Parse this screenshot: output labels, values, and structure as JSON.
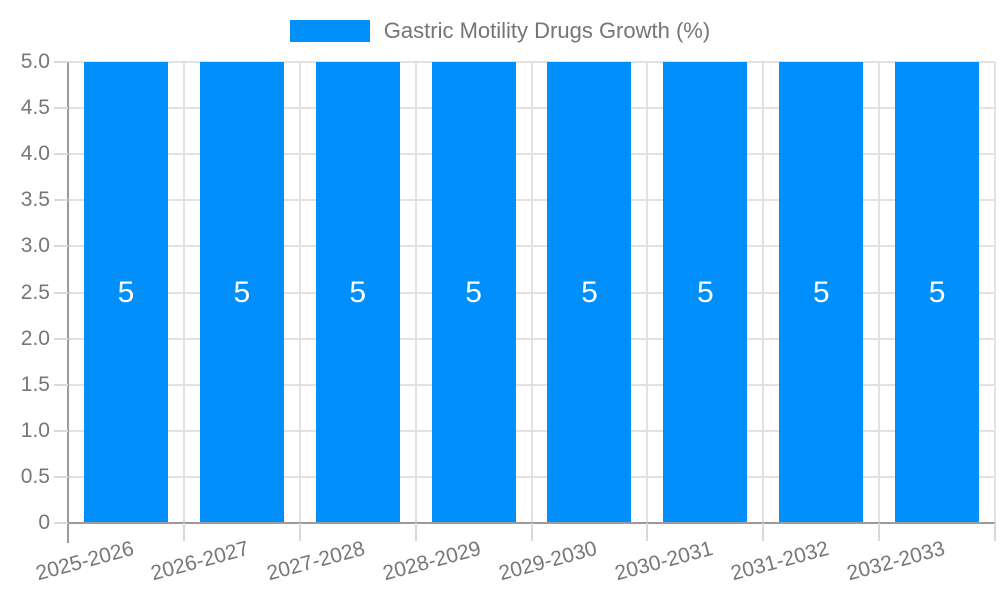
{
  "legend": {
    "label": "Gastric Motility Drugs Growth (%)"
  },
  "chart_data": {
    "type": "bar",
    "title": "",
    "xlabel": "",
    "ylabel": "",
    "categories": [
      "2025-2026",
      "2026-2027",
      "2027-2028",
      "2028-2029",
      "2029-2030",
      "2030-2031",
      "2031-2032",
      "2032-2033"
    ],
    "values": [
      5,
      5,
      5,
      5,
      5,
      5,
      5,
      5
    ],
    "bar_value_labels": [
      "5",
      "5",
      "5",
      "5",
      "5",
      "5",
      "5",
      "5"
    ],
    "series_name": "Gastric Motility Drugs Growth (%)",
    "ylim": [
      0,
      5
    ],
    "ytick_step": 0.5,
    "ytick_labels": [
      "0",
      "0.5",
      "1.0",
      "1.5",
      "2.0",
      "2.5",
      "3.0",
      "3.5",
      "4.0",
      "4.5",
      "5.0"
    ],
    "grid": "on",
    "legend_position": "top",
    "xtick_label_rotation_deg": -15,
    "colors": {
      "bar": "#008FFB",
      "bar_value_label": "#FFFFFF",
      "axis_line": "#9B9B9B",
      "gridline": "#E2E2E2",
      "tick_mark": "#D9D9D9",
      "tick_label_text": "#76777A",
      "legend_text": "#757575",
      "background": "#FFFFFF"
    }
  }
}
